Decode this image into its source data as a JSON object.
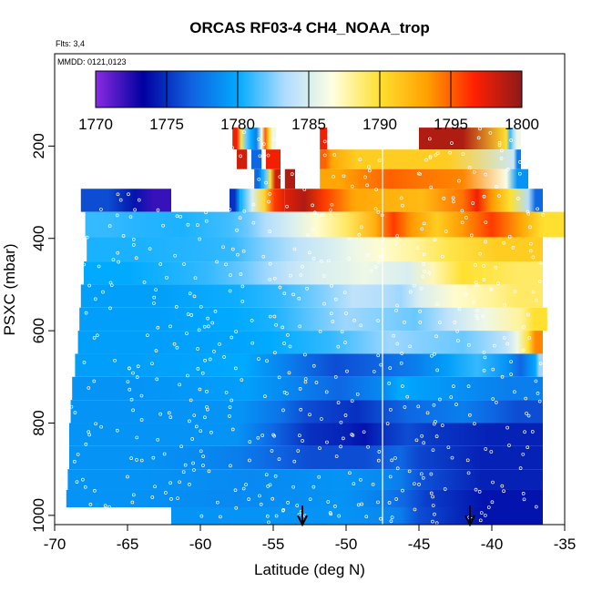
{
  "chart_data": {
    "type": "heatmap",
    "title": "ORCAS RF03-4 CH4_NOAA_trop",
    "subtitle_flights": "Flts: 3,4",
    "subtitle_dates": "MMDD: 0121,0123",
    "xlabel": "Latitude (deg N)",
    "ylabel": "PSXC (mbar)",
    "xlim": [
      -70,
      -35
    ],
    "ylim": [
      1020,
      0
    ],
    "x_ticks": [
      -70,
      -65,
      -60,
      -55,
      -50,
      -45,
      -40,
      -35
    ],
    "y_ticks": [
      200,
      400,
      600,
      800,
      1000
    ],
    "colorbar": {
      "ticks": [
        1770,
        1775,
        1780,
        1785,
        1790,
        1795,
        1800
      ],
      "range": [
        1770,
        1800
      ],
      "stops": [
        "#8a2be2",
        "#0000a0",
        "#1060e0",
        "#00aaff",
        "#b0dcff",
        "#ffffe0",
        "#ffe030",
        "#ffa000",
        "#ff2000",
        "#8b1a1a"
      ]
    },
    "vertical_line_lat": -47.5,
    "arrows_lat": [
      -53,
      -41.5
    ],
    "layers": [
      {
        "p": 185,
        "segments": [
          [
            -57.8,
            -57.2,
            1797
          ],
          [
            -57.2,
            -56.5,
            1782
          ],
          [
            -56.5,
            -55.8,
            1778
          ],
          [
            -55.8,
            -55.3,
            1795
          ],
          [
            -55.3,
            -54.8,
            1786
          ],
          [
            -51.8,
            -51.3,
            1797
          ],
          [
            -45,
            -39,
            1799
          ],
          [
            -39,
            -38.5,
            1781
          ],
          [
            -38.5,
            -38,
            1786
          ]
        ]
      },
      {
        "p": 230,
        "segments": [
          [
            -57.5,
            -56.8,
            1798
          ],
          [
            -56.5,
            -55.8,
            1777
          ],
          [
            -55.5,
            -54.5,
            1797
          ],
          [
            -51.8,
            -51,
            1795
          ],
          [
            -51,
            -47.5,
            1791
          ],
          [
            -47.5,
            -38.5,
            1791
          ],
          [
            -38.5,
            -38,
            1778
          ]
        ]
      },
      {
        "p": 270,
        "segments": [
          [
            -56.3,
            -55.8,
            1777
          ],
          [
            -55.8,
            -55.2,
            1782
          ],
          [
            -55.2,
            -54.5,
            1798
          ],
          [
            -54.2,
            -53.5,
            1799
          ],
          [
            -51.8,
            -49,
            1793
          ],
          [
            -49,
            -45,
            1795
          ],
          [
            -45,
            -39,
            1794
          ],
          [
            -39,
            -37.5,
            1779
          ]
        ]
      },
      {
        "p": 315,
        "segments": [
          [
            -68.2,
            -64.5,
            1776
          ],
          [
            -64.5,
            -62,
            1772
          ],
          [
            -58,
            -57.3,
            1775
          ],
          [
            -57.3,
            -55.6,
            1785
          ],
          [
            -55.6,
            -54.2,
            1796
          ],
          [
            -54.2,
            -51.5,
            1799
          ],
          [
            -51.5,
            -47.5,
            1793
          ],
          [
            -47.5,
            -42,
            1792
          ],
          [
            -42,
            -40,
            1797
          ],
          [
            -40,
            -37.5,
            1790
          ],
          [
            -37.5,
            -36.5,
            1777
          ]
        ]
      },
      {
        "p": 370,
        "segments": [
          [
            -67.9,
            -64.5,
            1781
          ],
          [
            -64.5,
            -58,
            1780.5
          ],
          [
            -58,
            -55.5,
            1782
          ],
          [
            -55.5,
            -52,
            1785
          ],
          [
            -52,
            -48,
            1789
          ],
          [
            -48,
            -45.5,
            1796
          ],
          [
            -45.5,
            -42,
            1791
          ],
          [
            -42,
            -38,
            1796
          ],
          [
            -38,
            -35,
            1790
          ]
        ]
      },
      {
        "p": 425,
        "segments": [
          [
            -67.8,
            -60,
            1780.5
          ],
          [
            -60,
            -55.5,
            1781
          ],
          [
            -55.5,
            -51,
            1784
          ],
          [
            -51,
            -47.5,
            1786
          ],
          [
            -47.5,
            -43,
            1788
          ],
          [
            -43,
            -36.5,
            1791
          ]
        ]
      },
      {
        "p": 475,
        "segments": [
          [
            -68,
            -62,
            1780
          ],
          [
            -62,
            -57,
            1781
          ],
          [
            -57,
            -54,
            1783
          ],
          [
            -54,
            -50,
            1785
          ],
          [
            -50,
            -47.5,
            1786
          ],
          [
            -47.5,
            -44,
            1785
          ],
          [
            -44,
            -40,
            1790
          ],
          [
            -40,
            -36.5,
            1789
          ]
        ]
      },
      {
        "p": 525,
        "segments": [
          [
            -68.2,
            -57.5,
            1779.5
          ],
          [
            -57.5,
            -51.5,
            1781
          ],
          [
            -51.5,
            -47.5,
            1784
          ],
          [
            -47.5,
            -45,
            1783
          ],
          [
            -45,
            -40,
            1787
          ],
          [
            -40,
            -36.5,
            1789
          ]
        ]
      },
      {
        "p": 575,
        "segments": [
          [
            -68.3,
            -57.5,
            1779.5
          ],
          [
            -57.5,
            -52.5,
            1780.5
          ],
          [
            -52.5,
            -47.5,
            1783
          ],
          [
            -47.5,
            -43,
            1782
          ],
          [
            -43,
            -38,
            1786
          ],
          [
            -38,
            -36.2,
            1790
          ]
        ]
      },
      {
        "p": 625,
        "segments": [
          [
            -68.4,
            -57.5,
            1779.5
          ],
          [
            -57.5,
            -53,
            1780
          ],
          [
            -53,
            -49,
            1781
          ],
          [
            -49,
            -45,
            1783
          ],
          [
            -45,
            -39,
            1782
          ],
          [
            -39,
            -37.5,
            1786
          ],
          [
            -37.5,
            -36.5,
            1794
          ]
        ]
      },
      {
        "p": 675,
        "segments": [
          [
            -68.6,
            -60,
            1779.5
          ],
          [
            -60,
            -54,
            1780
          ],
          [
            -54,
            -47.5,
            1776
          ],
          [
            -47.5,
            -43,
            1778
          ],
          [
            -43,
            -39,
            1781
          ],
          [
            -39,
            -37,
            1777
          ],
          [
            -37,
            -36.5,
            1783
          ]
        ]
      },
      {
        "p": 725,
        "segments": [
          [
            -68.8,
            -60,
            1779
          ],
          [
            -60,
            -53.5,
            1779.5
          ],
          [
            -53.5,
            -47.5,
            1777
          ],
          [
            -47.5,
            -45,
            1780
          ],
          [
            -45,
            -41,
            1779
          ],
          [
            -41,
            -36.5,
            1778
          ]
        ]
      },
      {
        "p": 775,
        "segments": [
          [
            -68.9,
            -60,
            1779
          ],
          [
            -60,
            -54.5,
            1779
          ],
          [
            -54.5,
            -51,
            1776
          ],
          [
            -51,
            -47.5,
            1775
          ],
          [
            -47.5,
            -44,
            1777
          ],
          [
            -44,
            -40,
            1778
          ],
          [
            -40,
            -36.5,
            1776
          ]
        ]
      },
      {
        "p": 825,
        "segments": [
          [
            -69,
            -60,
            1779
          ],
          [
            -60,
            -55,
            1779
          ],
          [
            -55,
            -50,
            1775
          ],
          [
            -50,
            -47.5,
            1774
          ],
          [
            -47.5,
            -44,
            1776
          ],
          [
            -44,
            -36.5,
            1774.5
          ]
        ]
      },
      {
        "p": 875,
        "segments": [
          [
            -69,
            -60,
            1779
          ],
          [
            -60,
            -55,
            1778
          ],
          [
            -55,
            -50,
            1776
          ],
          [
            -50,
            -47.5,
            1776
          ],
          [
            -47.5,
            -45,
            1777
          ],
          [
            -45,
            -36.5,
            1774.5
          ]
        ]
      },
      {
        "p": 925,
        "segments": [
          [
            -69.1,
            -60,
            1779
          ],
          [
            -60,
            -53,
            1778.5
          ],
          [
            -53,
            -47.5,
            1779
          ],
          [
            -47.5,
            -45,
            1778
          ],
          [
            -45,
            -36.5,
            1774.5
          ]
        ]
      },
      {
        "p": 965,
        "segments": [
          [
            -69.2,
            -62,
            1779
          ],
          [
            -62,
            -53,
            1778.5
          ],
          [
            -53,
            -47.5,
            1779
          ],
          [
            -47.5,
            -44.5,
            1777
          ],
          [
            -44.5,
            -36.5,
            1774
          ]
        ]
      },
      {
        "p": 1000,
        "segments": [
          [
            -62,
            -53,
            1779
          ],
          [
            -53,
            -47.5,
            1779
          ],
          [
            -47.5,
            -45,
            1778
          ],
          [
            -45,
            -36.5,
            1774
          ]
        ]
      }
    ]
  }
}
